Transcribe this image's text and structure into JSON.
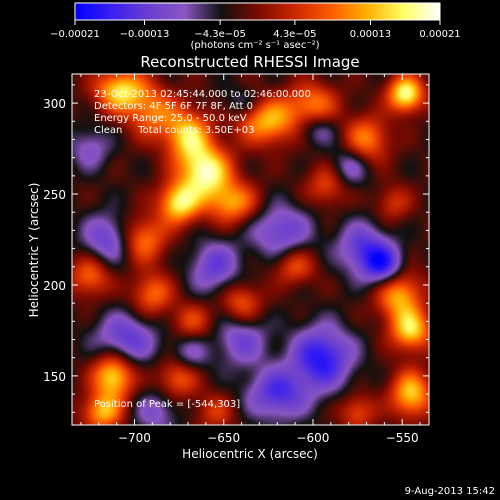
{
  "chart_data": {
    "type": "heatmap",
    "title": "Reconstructed RHESSI Image",
    "xlabel": "Heliocentric X (arcsec)",
    "ylabel": "Heliocentric Y (arcsec)",
    "xlim": [
      -735,
      -535
    ],
    "ylim": [
      123,
      316
    ],
    "x_ticks": [
      -700,
      -650,
      -600,
      -550
    ],
    "y_ticks": [
      150,
      200,
      250,
      300
    ],
    "x_tick_labels": [
      "−700",
      "−650",
      "−600",
      "−550"
    ],
    "y_tick_labels": [
      "150",
      "200",
      "250",
      "300"
    ],
    "colorbar": {
      "ticks": [
        -0.00021,
        -0.00013,
        -4.3e-05,
        4.3e-05,
        0.00013,
        0.00021
      ],
      "tick_labels": [
        "−0.00021",
        "−0.00013",
        "−4.3e−05",
        "4.3e−05",
        "0.00013",
        "0.00021"
      ],
      "unit_text": "(photons cm⁻² s⁻¹ asec⁻²)",
      "colors": [
        "#0000ff",
        "#3a1ff0",
        "#6a3fd0",
        "#8a56c2",
        "#111111",
        "#7a0a00",
        "#c82600",
        "#ff5a00",
        "#ffb000",
        "#ffff66",
        "#ffffff"
      ]
    },
    "annotations": [
      "23-Oct-2013 02:45:44.000 to 02:46:00.000",
      "Detectors: 4F 5F 6F 7F 8F, Att 0",
      "Energy Range: 25.0 - 50.0 keV",
      "Clean     Total counts: 3.50E+03"
    ],
    "peak_label": "Position of Peak = [-544,303]",
    "peak": [
      -544,
      303
    ],
    "sources": [
      {
        "x": -708,
        "y": 307,
        "v": 0.85,
        "sx": 10,
        "sy": 8
      },
      {
        "x": -690,
        "y": 295,
        "v": 0.55,
        "sx": 10,
        "sy": 10
      },
      {
        "x": -670,
        "y": 282,
        "v": 0.8,
        "sx": 9,
        "sy": 10
      },
      {
        "x": -660,
        "y": 262,
        "v": 1.0,
        "sx": 10,
        "sy": 10
      },
      {
        "x": -675,
        "y": 245,
        "v": 0.9,
        "sx": 8,
        "sy": 8
      },
      {
        "x": -645,
        "y": 245,
        "v": 0.65,
        "sx": 10,
        "sy": 8
      },
      {
        "x": -695,
        "y": 225,
        "v": 0.6,
        "sx": 9,
        "sy": 9
      },
      {
        "x": -725,
        "y": 205,
        "v": 0.55,
        "sx": 8,
        "sy": 8
      },
      {
        "x": -690,
        "y": 195,
        "v": 0.55,
        "sx": 8,
        "sy": 8
      },
      {
        "x": -625,
        "y": 290,
        "v": 0.75,
        "sx": 12,
        "sy": 9
      },
      {
        "x": -600,
        "y": 300,
        "v": 0.55,
        "sx": 10,
        "sy": 8
      },
      {
        "x": -570,
        "y": 280,
        "v": 0.6,
        "sx": 9,
        "sy": 9
      },
      {
        "x": -548,
        "y": 305,
        "v": 1.0,
        "sx": 7,
        "sy": 7
      },
      {
        "x": -592,
        "y": 255,
        "v": 0.45,
        "sx": 8,
        "sy": 8
      },
      {
        "x": -555,
        "y": 245,
        "v": 0.35,
        "sx": 7,
        "sy": 7
      },
      {
        "x": -610,
        "y": 210,
        "v": 0.45,
        "sx": 8,
        "sy": 7
      },
      {
        "x": -640,
        "y": 190,
        "v": 0.5,
        "sx": 8,
        "sy": 8
      },
      {
        "x": -668,
        "y": 180,
        "v": 0.4,
        "sx": 8,
        "sy": 7
      },
      {
        "x": -552,
        "y": 195,
        "v": 0.75,
        "sx": 9,
        "sy": 10
      },
      {
        "x": -545,
        "y": 175,
        "v": 0.8,
        "sx": 8,
        "sy": 8
      },
      {
        "x": -712,
        "y": 150,
        "v": 0.9,
        "sx": 8,
        "sy": 9
      },
      {
        "x": -718,
        "y": 130,
        "v": 0.7,
        "sx": 8,
        "sy": 7
      },
      {
        "x": -675,
        "y": 150,
        "v": 0.6,
        "sx": 8,
        "sy": 8
      },
      {
        "x": -575,
        "y": 130,
        "v": 0.45,
        "sx": 7,
        "sy": 7
      },
      {
        "x": -545,
        "y": 140,
        "v": 0.8,
        "sx": 8,
        "sy": 9
      },
      {
        "x": -655,
        "y": 130,
        "v": 0.35,
        "sx": 8,
        "sy": 7
      },
      {
        "x": -715,
        "y": 225,
        "v": -0.5,
        "sx": 10,
        "sy": 10
      },
      {
        "x": -705,
        "y": 170,
        "v": -0.55,
        "sx": 12,
        "sy": 10
      },
      {
        "x": -655,
        "y": 210,
        "v": -0.5,
        "sx": 10,
        "sy": 10
      },
      {
        "x": -618,
        "y": 230,
        "v": -0.5,
        "sx": 12,
        "sy": 10
      },
      {
        "x": -595,
        "y": 160,
        "v": -0.75,
        "sx": 12,
        "sy": 12
      },
      {
        "x": -620,
        "y": 140,
        "v": -0.6,
        "sx": 12,
        "sy": 10
      },
      {
        "x": -572,
        "y": 220,
        "v": -0.55,
        "sx": 10,
        "sy": 10
      },
      {
        "x": -560,
        "y": 210,
        "v": -0.7,
        "sx": 8,
        "sy": 8
      },
      {
        "x": -580,
        "y": 265,
        "v": -0.4,
        "sx": 8,
        "sy": 8
      },
      {
        "x": -640,
        "y": 170,
        "v": -0.45,
        "sx": 10,
        "sy": 10
      },
      {
        "x": -670,
        "y": 160,
        "v": -0.4,
        "sx": 8,
        "sy": 8
      },
      {
        "x": -725,
        "y": 275,
        "v": -0.35,
        "sx": 8,
        "sy": 8
      },
      {
        "x": -688,
        "y": 130,
        "v": -0.35,
        "sx": 9,
        "sy": 8
      },
      {
        "x": -598,
        "y": 285,
        "v": -0.3,
        "sx": 8,
        "sy": 6
      },
      {
        "x": -640,
        "y": 300,
        "v": -0.25,
        "sx": 8,
        "sy": 6
      }
    ]
  },
  "footer": {
    "date": "9-Aug-2013 15:42"
  }
}
